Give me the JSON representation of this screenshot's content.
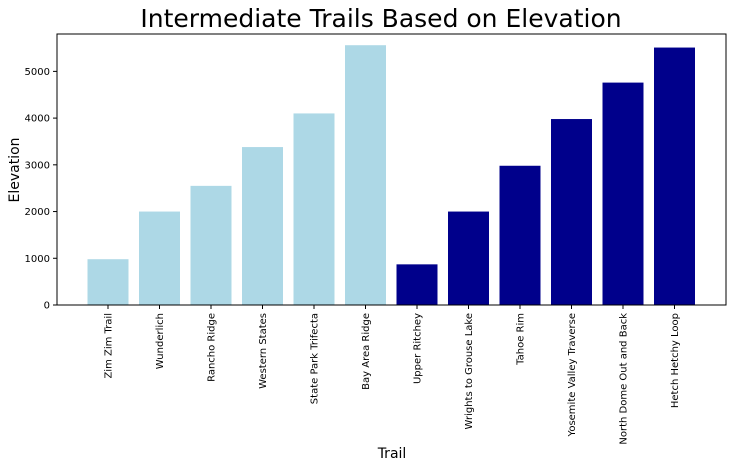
{
  "chart_data": {
    "type": "bar",
    "title": "Intermediate Trails Based on Elevation",
    "xlabel": "Trail",
    "ylabel": "Elevation",
    "ylim": [
      0,
      5800
    ],
    "yticks": [
      0,
      1000,
      2000,
      3000,
      4000,
      5000
    ],
    "categories": [
      "Zim Zim Trail",
      "Wunderlich",
      "Rancho Ridge",
      "Western States",
      "State Park Trifecta",
      "Bay Area Ridge",
      "Upper Ritchey",
      "Wrights to Grouse Lake",
      "Tahoe Rim",
      "Yosemite Valley Traverse",
      "North Dome Out and Back",
      "Hetch Hetchy Loop"
    ],
    "values": [
      980,
      2000,
      2550,
      3380,
      4100,
      5560,
      870,
      2000,
      2980,
      3980,
      4760,
      5510
    ],
    "bar_colors": [
      "#add8e6",
      "#add8e6",
      "#add8e6",
      "#add8e6",
      "#add8e6",
      "#add8e6",
      "#00008b",
      "#00008b",
      "#00008b",
      "#00008b",
      "#00008b",
      "#00008b"
    ],
    "grid": false,
    "legend": "none"
  }
}
